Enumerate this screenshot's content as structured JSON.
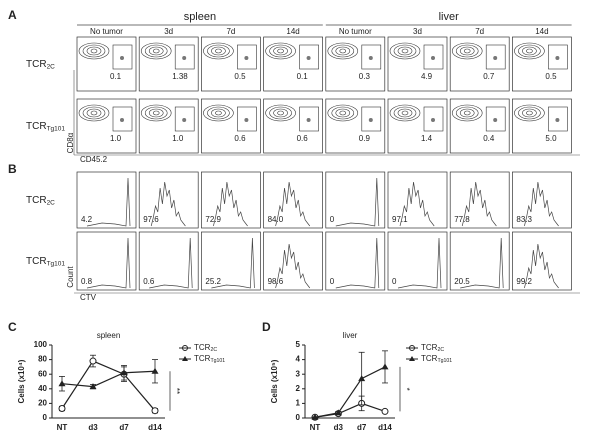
{
  "panel_a": {
    "letter": "A",
    "groups": [
      {
        "name": "spleen",
        "columns": [
          "No tumor",
          "3d",
          "7d",
          "14d"
        ]
      },
      {
        "name": "liver",
        "columns": [
          "No tumor",
          "3d",
          "7d",
          "14d"
        ]
      }
    ],
    "rows": [
      {
        "label": "TCR2C",
        "values": [
          "0.1",
          "1.38",
          "0.5",
          "0.1",
          "0.3",
          "4.9",
          "0.7",
          "0.5"
        ]
      },
      {
        "label": "TCRTg101",
        "values": [
          "1.0",
          "1.0",
          "0.6",
          "0.6",
          "0.9",
          "1.4",
          "0.4",
          "5.0"
        ]
      }
    ],
    "y_axis": "CD8α",
    "x_axis": "CD45.2"
  },
  "panel_b": {
    "letter": "B",
    "rows": [
      {
        "label": "TCR2C",
        "values": [
          "4.2",
          "97.6",
          "72.9",
          "84.0",
          "0",
          "97.1",
          "77.8",
          "83.3"
        ]
      },
      {
        "label": "TCRTg101",
        "values": [
          "0.8",
          "0.6",
          "25.2",
          "98.6",
          "0",
          "0",
          "20.5",
          "99.2"
        ]
      }
    ],
    "y_axis": "Count",
    "x_axis": "CTV"
  },
  "panel_c": {
    "letter": "C"
  },
  "panel_d": {
    "letter": "D"
  },
  "chart_data": [
    {
      "type": "line",
      "title": "spleen",
      "ylabel": "Cells (x10⁴)",
      "categories": [
        "NT",
        "d3",
        "d7",
        "d14"
      ],
      "ylim": [
        0,
        100
      ],
      "yticks": [
        0,
        20,
        40,
        60,
        80,
        100
      ],
      "annotation": "**",
      "series": [
        {
          "name": "TCR2C",
          "color": "#222222",
          "marker": "open-circle",
          "values": [
            13,
            78,
            60,
            10
          ],
          "errors": [
            3,
            8,
            10,
            3
          ]
        },
        {
          "name": "TCRTg101",
          "color": "#222222",
          "marker": "filled-triangle",
          "values": [
            47,
            43,
            62,
            64
          ],
          "errors": [
            10,
            3,
            10,
            16
          ]
        }
      ]
    },
    {
      "type": "line",
      "title": "liver",
      "ylabel": "Cells (x10⁵)",
      "categories": [
        "NT",
        "d3",
        "d7",
        "d14"
      ],
      "ylim": [
        0,
        5
      ],
      "yticks": [
        0,
        1,
        2,
        3,
        4,
        5
      ],
      "annotation": "*",
      "series": [
        {
          "name": "TCR2C",
          "color": "#222222",
          "marker": "open-circle",
          "values": [
            0.05,
            0.3,
            1.0,
            0.45
          ],
          "errors": [
            0.02,
            0.1,
            0.5,
            0.05
          ]
        },
        {
          "name": "TCRTg101",
          "color": "#222222",
          "marker": "filled-triangle",
          "values": [
            0.05,
            0.35,
            2.7,
            3.5
          ],
          "errors": [
            0.02,
            0.1,
            1.8,
            1.1
          ]
        }
      ]
    }
  ]
}
